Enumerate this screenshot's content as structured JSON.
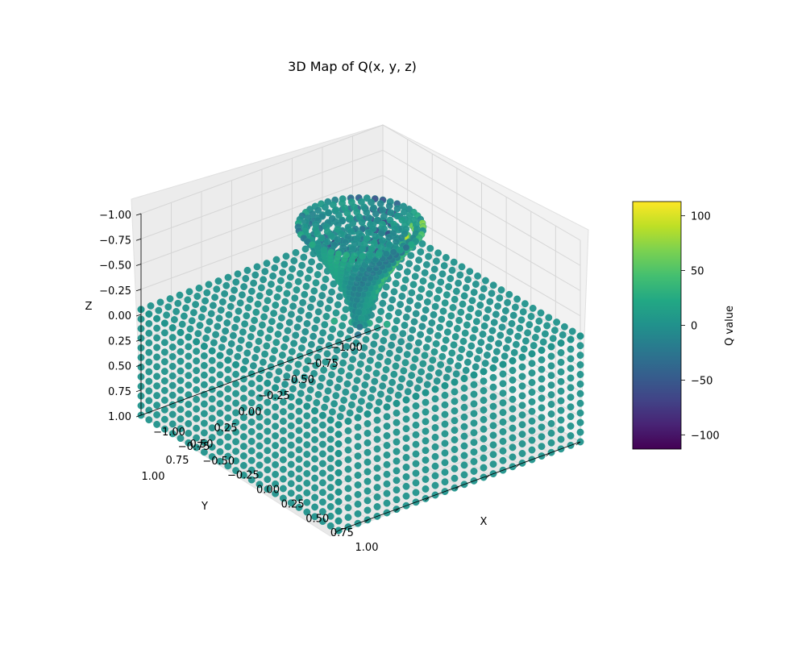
{
  "chart_data": {
    "type": "scatter",
    "projection": "3d",
    "title": "3D Map of Q(x, y, z)",
    "xlabel": "X",
    "ylabel": "Y",
    "zlabel": "Z",
    "xlim": [
      -1,
      1
    ],
    "ylim": [
      -1,
      1
    ],
    "zlim": [
      -1,
      1
    ],
    "z_axis_inverted": true,
    "grid": true,
    "x_ticks": [
      "−1.00",
      "−0.75",
      "−0.50",
      "−0.25",
      "0.00",
      "0.25",
      "0.50",
      "0.75",
      "1.00"
    ],
    "y_ticks": [
      "−1.00",
      "−0.75",
      "−0.50",
      "−0.25",
      "0.00",
      "0.25",
      "0.50",
      "0.75",
      "1.00"
    ],
    "z_ticks": [
      "−1.00",
      "−0.75",
      "−0.50",
      "−0.25",
      "0.00",
      "0.25",
      "0.50",
      "0.75",
      "1.00"
    ],
    "colormap": "viridis",
    "colorbar": {
      "label": "Q value",
      "min": -113,
      "max": 113,
      "ticks": [
        "−100",
        "−50",
        "0",
        "50",
        "100"
      ],
      "tick_values": [
        -100,
        -50,
        0,
        50,
        100
      ]
    },
    "description_values": {
      "background_Q": 0,
      "funnel_axis": [
        0,
        0
      ],
      "funnel_min_Q": -113,
      "funnel_max_Q": 113
    },
    "colors": {
      "pane": "#f2f2f2",
      "grid": "#d6d6d6",
      "base_point": "#23908c",
      "point_edge": "#2a9b8f"
    }
  }
}
